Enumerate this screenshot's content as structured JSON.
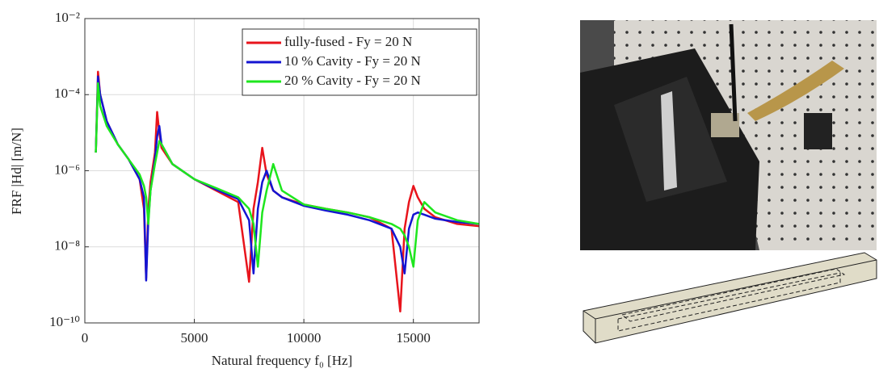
{
  "chart_data": {
    "type": "line",
    "xlabel": "Natural frequency f₀ [Hz]",
    "ylabel": "FRF |Hd| [m/N]",
    "yscale": "log",
    "grid": true,
    "legend": "upper right",
    "xlim": [
      0,
      18000
    ],
    "xticks": [
      0,
      5000,
      10000,
      15000
    ],
    "ylim": [
      1e-10,
      0.01
    ],
    "yticks": [
      {
        "value": 1e-10,
        "label": "10⁻¹⁰"
      },
      {
        "value": 1e-08,
        "label": "10⁻⁸"
      },
      {
        "value": 1e-06,
        "label": "10⁻⁶"
      },
      {
        "value": 0.0001,
        "label": "10⁻⁴"
      },
      {
        "value": 0.01,
        "label": "10⁻²"
      }
    ],
    "x": [
      500,
      600,
      700,
      1000,
      1500,
      2000,
      2500,
      2700,
      2800,
      2900,
      3000,
      3200,
      3300,
      3400,
      3500,
      4000,
      5000,
      6000,
      7000,
      7500,
      7700,
      7900,
      8100,
      8300,
      8600,
      9000,
      10000,
      11000,
      12000,
      13000,
      14000,
      14400,
      14600,
      14800,
      15000,
      15200,
      15500,
      16000,
      17000,
      18000
    ],
    "series": [
      {
        "name": "fully-fused - Fy = 20 N",
        "color": "#e8141c",
        "values": [
          3e-06,
          0.0004,
          0.0001,
          2e-05,
          5e-06,
          2e-06,
          6e-07,
          1e-07,
          1.5e-09,
          1e-07,
          5e-07,
          3e-06,
          3.5e-05,
          1e-05,
          4e-06,
          1.5e-06,
          6e-07,
          3e-07,
          1.5e-07,
          1.2e-09,
          1e-07,
          5e-07,
          4e-06,
          8e-07,
          3e-07,
          2e-07,
          1.3e-07,
          1e-07,
          8e-08,
          6e-08,
          3e-08,
          2e-10,
          3e-08,
          1.5e-07,
          4e-07,
          2e-07,
          1e-07,
          6e-08,
          4e-08,
          3.5e-08
        ]
      },
      {
        "name": "10 % Cavity - Fy = 20 N",
        "color": "#1414d2",
        "values": [
          3e-06,
          0.0003,
          0.0001,
          2e-05,
          5e-06,
          2e-06,
          6e-07,
          2e-07,
          1.3e-09,
          5e-08,
          3e-07,
          2e-06,
          8e-06,
          1.5e-05,
          5e-06,
          1.5e-06,
          6e-07,
          3.2e-07,
          1.8e-07,
          5e-08,
          2e-09,
          1e-07,
          5e-07,
          1e-06,
          3e-07,
          2e-07,
          1.2e-07,
          9e-08,
          7e-08,
          5e-08,
          3e-08,
          1e-08,
          2e-09,
          3e-08,
          7e-08,
          8e-08,
          7e-08,
          5.5e-08,
          4.5e-08,
          4e-08
        ]
      },
      {
        "name": "20 % Cavity - Fy = 20 N",
        "color": "#1ee61e",
        "values": [
          3e-06,
          0.0002,
          5e-05,
          1.5e-05,
          5e-06,
          2e-06,
          8e-07,
          4e-07,
          2e-07,
          4e-08,
          3e-07,
          1.5e-06,
          3e-06,
          6e-06,
          5e-06,
          1.5e-06,
          6e-07,
          3.5e-07,
          2e-07,
          1e-07,
          4e-08,
          3e-09,
          8e-08,
          3e-07,
          1.5e-06,
          3e-07,
          1.3e-07,
          1e-07,
          8e-08,
          6e-08,
          4e-08,
          3e-08,
          2e-08,
          1e-08,
          3e-09,
          5e-08,
          1.5e-07,
          8e-08,
          5e-08,
          4e-08
        ]
      }
    ]
  }
}
